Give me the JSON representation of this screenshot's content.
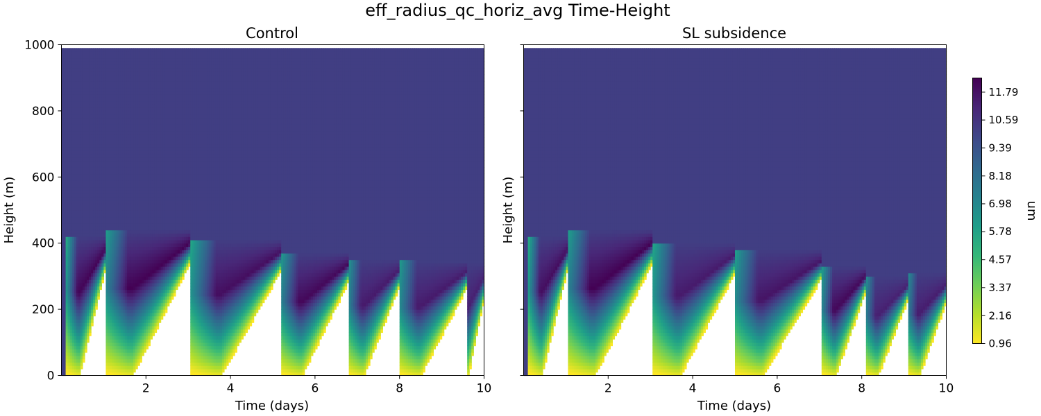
{
  "figure": {
    "suptitle": "eff_radius_qc_horiz_avg Time-Height",
    "colorbar": {
      "label": "um",
      "ticks": [
        "0.96",
        "2.16",
        "3.37",
        "4.57",
        "5.78",
        "6.98",
        "8.18",
        "9.39",
        "10.59",
        "11.79"
      ],
      "range": [
        0.96,
        12.4
      ],
      "colormap": "viridis_r"
    }
  },
  "chart_data": [
    {
      "type": "heatmap",
      "title": "Control",
      "xlabel": "Time (days)",
      "ylabel": "Height (m)",
      "xlim": [
        0,
        10
      ],
      "ylim": [
        0,
        1000
      ],
      "xticks": [
        "2",
        "4",
        "6",
        "8",
        "10"
      ],
      "yticks": [
        "0",
        "200",
        "400",
        "600",
        "800",
        "1000"
      ],
      "background_value": 10.3,
      "data_top": 985,
      "units": "um",
      "events": [
        {
          "t0": 0.1,
          "t1": 1.05,
          "top": 420,
          "peak": 12.3
        },
        {
          "t0": 0.95,
          "t1": 3.05,
          "top": 440,
          "peak": 12.4
        },
        {
          "t0": 3.0,
          "t1": 5.2,
          "top": 410,
          "peak": 12.0
        },
        {
          "t0": 5.1,
          "t1": 6.8,
          "top": 370,
          "peak": 12.2
        },
        {
          "t0": 6.7,
          "t1": 8.0,
          "top": 350,
          "peak": 11.6
        },
        {
          "t0": 7.9,
          "t1": 9.6,
          "top": 345,
          "peak": 11.6
        },
        {
          "t0": 9.4,
          "t1": 10.05,
          "top": 340,
          "peak": 11.4
        }
      ]
    },
    {
      "type": "heatmap",
      "title": "SL subsidence",
      "xlabel": "Time (days)",
      "ylabel": "Height (m)",
      "xlim": [
        0,
        10
      ],
      "ylim": [
        0,
        1000
      ],
      "xticks": [
        "2",
        "4",
        "6",
        "8",
        "10"
      ],
      "yticks": [],
      "background_value": 10.3,
      "data_top": 985,
      "units": "um",
      "events": [
        {
          "t0": 0.1,
          "t1": 1.05,
          "top": 420,
          "peak": 12.0
        },
        {
          "t0": 0.95,
          "t1": 3.05,
          "top": 440,
          "peak": 12.4
        },
        {
          "t0": 3.0,
          "t1": 5.0,
          "top": 400,
          "peak": 11.6
        },
        {
          "t0": 4.9,
          "t1": 7.05,
          "top": 380,
          "peak": 11.8
        },
        {
          "t0": 7.0,
          "t1": 8.1,
          "top": 330,
          "peak": 12.2
        },
        {
          "t0": 8.0,
          "t1": 9.1,
          "top": 300,
          "peak": 11.4
        },
        {
          "t0": 9.0,
          "t1": 10.05,
          "top": 310,
          "peak": 11.5
        }
      ]
    }
  ]
}
